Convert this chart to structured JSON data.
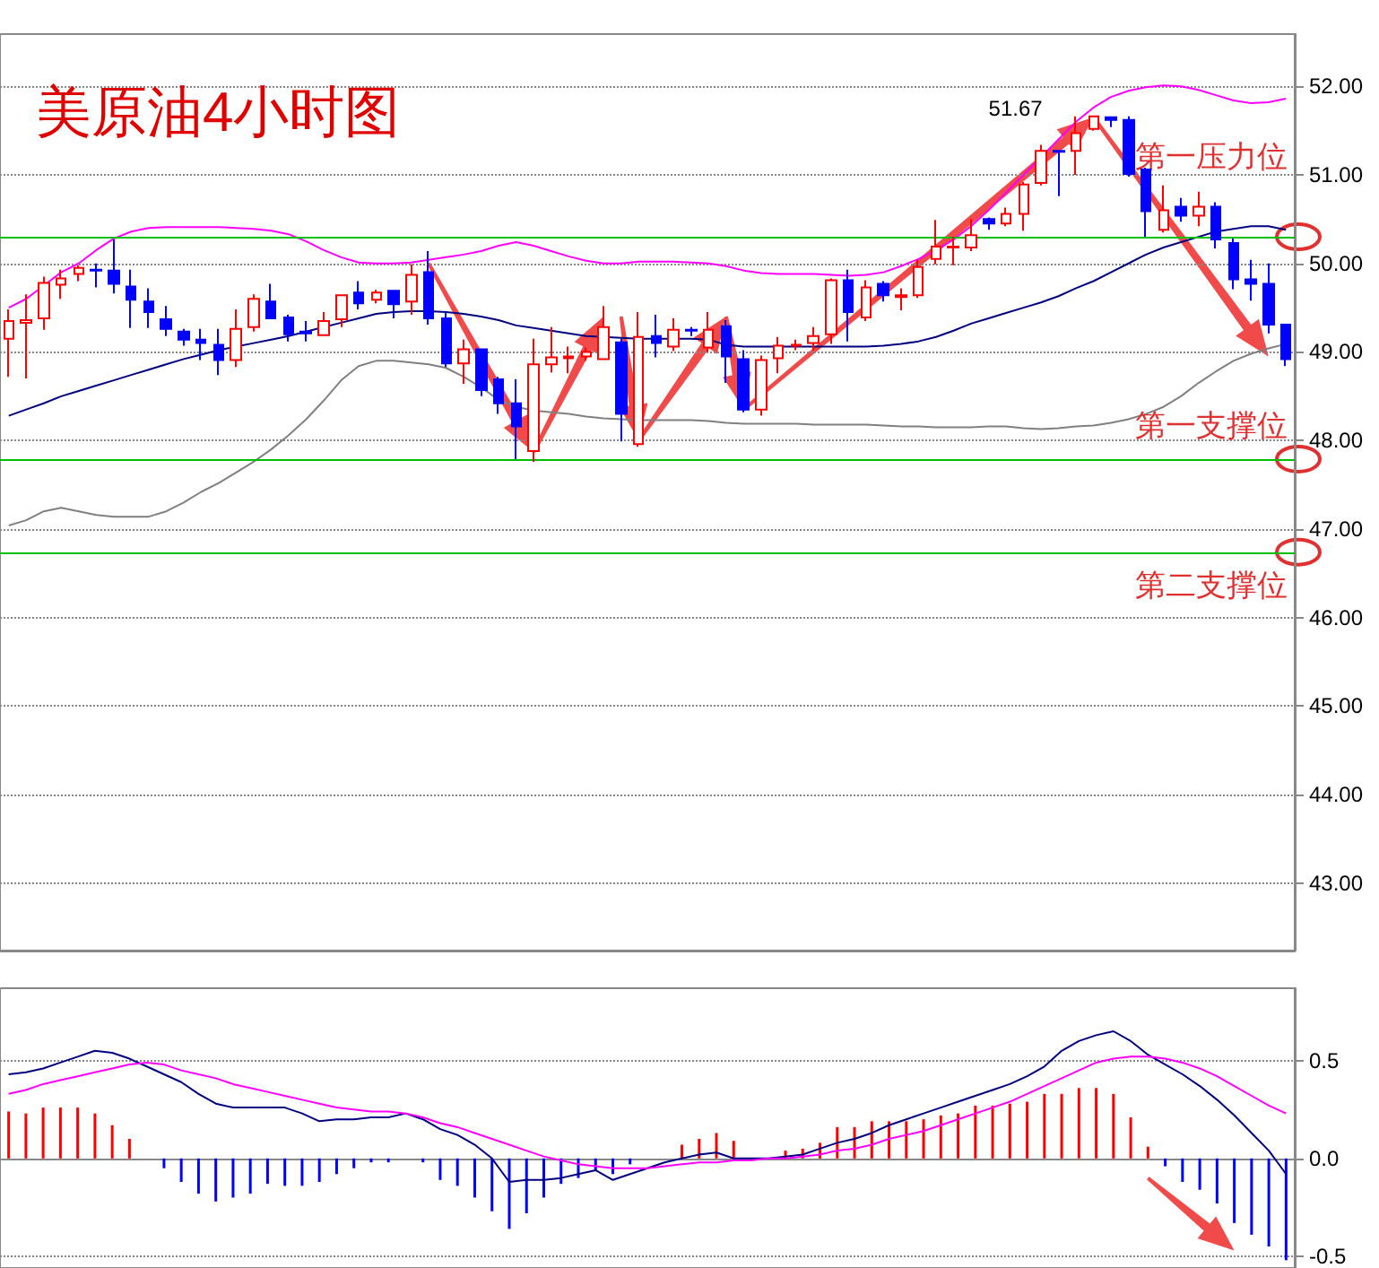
{
  "chart_data": [
    {
      "type": "candlestick",
      "title": "美原油4小时图",
      "categories": [
        null,
        null,
        null,
        null,
        null,
        null,
        null,
        null,
        null,
        null,
        null,
        null,
        null,
        null,
        null,
        null,
        null,
        null,
        null,
        null,
        null,
        null,
        null,
        null,
        null,
        null,
        null,
        null,
        null,
        null,
        null,
        null,
        null,
        null,
        null,
        null,
        null,
        null,
        null,
        null,
        null,
        null,
        null,
        null,
        null,
        null,
        null,
        null,
        null,
        null,
        null,
        null,
        null,
        null,
        null,
        null,
        null,
        null,
        null,
        null,
        null,
        null,
        null,
        null,
        null,
        null,
        null,
        null,
        null,
        null,
        null,
        null,
        null,
        null
      ],
      "ohlc": [
        [
          49.15,
          49.48,
          48.72,
          49.35
        ],
        [
          49.33,
          49.65,
          48.7,
          49.36
        ],
        [
          49.38,
          49.85,
          49.25,
          49.78
        ],
        [
          49.76,
          49.93,
          49.6,
          49.83
        ],
        [
          49.88,
          49.98,
          49.8,
          49.95
        ],
        [
          49.93,
          50.0,
          49.73,
          49.92
        ],
        [
          49.92,
          50.27,
          49.66,
          49.77
        ],
        [
          49.74,
          49.93,
          49.27,
          49.59
        ],
        [
          49.57,
          49.72,
          49.27,
          49.45
        ],
        [
          49.37,
          49.52,
          49.18,
          49.26
        ],
        [
          49.23,
          49.26,
          49.07,
          49.14
        ],
        [
          49.14,
          49.26,
          48.91,
          49.1
        ],
        [
          49.08,
          49.26,
          48.74,
          48.91
        ],
        [
          48.91,
          49.48,
          48.83,
          49.26
        ],
        [
          49.28,
          49.65,
          49.23,
          49.6
        ],
        [
          49.57,
          49.77,
          49.37,
          49.38
        ],
        [
          49.39,
          49.42,
          49.12,
          49.2
        ],
        [
          49.23,
          49.35,
          49.12,
          49.21
        ],
        [
          49.19,
          49.45,
          49.18,
          49.35
        ],
        [
          49.37,
          49.65,
          49.28,
          49.64
        ],
        [
          49.67,
          49.8,
          49.48,
          49.55
        ],
        [
          49.59,
          49.7,
          49.55,
          49.67
        ],
        [
          49.69,
          49.7,
          49.38,
          49.54
        ],
        [
          49.57,
          49.99,
          49.42,
          49.87
        ],
        [
          49.9,
          50.14,
          49.31,
          49.38
        ],
        [
          49.38,
          49.45,
          48.83,
          48.87
        ],
        [
          48.87,
          49.14,
          48.64,
          49.03
        ],
        [
          49.03,
          49.04,
          48.5,
          48.57
        ],
        [
          48.69,
          48.72,
          48.3,
          48.42
        ],
        [
          48.42,
          48.69,
          47.79,
          48.16
        ],
        [
          47.88,
          49.15,
          47.76,
          48.86
        ],
        [
          48.86,
          49.28,
          48.77,
          48.94
        ],
        [
          48.93,
          49.06,
          48.76,
          48.95
        ],
        [
          48.95,
          49.05,
          48.9,
          49.0
        ],
        [
          48.92,
          49.52,
          48.91,
          49.28
        ],
        [
          49.11,
          49.15,
          47.99,
          48.3
        ],
        [
          47.96,
          49.45,
          47.93,
          49.17
        ],
        [
          49.18,
          49.42,
          48.94,
          49.1
        ],
        [
          49.06,
          49.38,
          49.01,
          49.25
        ],
        [
          49.25,
          49.28,
          49.18,
          49.24
        ],
        [
          49.05,
          49.45,
          49.0,
          49.25
        ],
        [
          49.29,
          49.36,
          48.65,
          48.95
        ],
        [
          48.92,
          49.02,
          48.32,
          48.35
        ],
        [
          48.35,
          48.96,
          48.28,
          48.91
        ],
        [
          48.93,
          49.17,
          48.76,
          49.07
        ],
        [
          49.07,
          49.14,
          49.02,
          49.08
        ],
        [
          49.1,
          49.28,
          49.02,
          49.18
        ],
        [
          49.2,
          49.83,
          49.09,
          49.81
        ],
        [
          49.81,
          49.93,
          49.12,
          49.45
        ],
        [
          49.39,
          49.81,
          49.35,
          49.73
        ],
        [
          49.77,
          49.8,
          49.57,
          49.64
        ],
        [
          49.62,
          49.72,
          49.47,
          49.64
        ],
        [
          49.64,
          50.04,
          49.61,
          49.96
        ],
        [
          50.05,
          50.49,
          49.99,
          50.19
        ],
        [
          50.18,
          50.3,
          49.98,
          50.19
        ],
        [
          50.18,
          50.5,
          50.14,
          50.32
        ],
        [
          50.5,
          50.52,
          50.38,
          50.45
        ],
        [
          50.45,
          50.63,
          50.42,
          50.56
        ],
        [
          50.56,
          50.92,
          50.37,
          50.89
        ],
        [
          50.91,
          51.34,
          50.88,
          51.27
        ],
        [
          51.27,
          51.28,
          50.76,
          51.26
        ],
        [
          51.27,
          51.66,
          51.0,
          51.47
        ],
        [
          51.52,
          51.67,
          51.5,
          51.66
        ],
        [
          51.65,
          51.66,
          51.54,
          51.62
        ],
        [
          51.62,
          51.66,
          50.98,
          51.01
        ],
        [
          51.06,
          51.08,
          50.3,
          50.59
        ],
        [
          50.38,
          50.88,
          50.35,
          50.6
        ],
        [
          50.64,
          50.74,
          50.47,
          50.54
        ],
        [
          50.54,
          50.81,
          50.42,
          50.64
        ],
        [
          50.64,
          50.69,
          50.17,
          50.27
        ],
        [
          50.23,
          50.28,
          49.71,
          49.82
        ],
        [
          49.82,
          50.04,
          49.58,
          49.77
        ],
        [
          49.77,
          50.0,
          49.21,
          49.31
        ],
        [
          49.31,
          49.31,
          48.84,
          48.92
        ]
      ],
      "series": [
        {
          "type": "line",
          "color": "#ff00ff",
          "values": [
            49.5,
            49.6,
            49.75,
            49.9,
            50.0,
            50.15,
            50.28,
            50.36,
            50.4,
            50.41,
            50.41,
            50.41,
            50.41,
            50.4,
            50.39,
            50.37,
            50.33,
            50.25,
            50.15,
            50.07,
            50.01,
            50.0,
            50.0,
            50.01,
            50.04,
            50.07,
            50.1,
            50.14,
            50.2,
            50.24,
            50.2,
            50.14,
            50.08,
            50.03,
            50.0,
            50.0,
            50.02,
            50.02,
            50.02,
            50.01,
            50.0,
            49.97,
            49.92,
            49.89,
            49.88,
            49.88,
            49.88,
            49.87,
            49.86,
            49.87,
            49.9,
            49.97,
            50.05,
            50.15,
            50.27,
            50.42,
            50.6,
            50.8,
            51.0,
            51.2,
            51.4,
            51.6,
            51.76,
            51.88,
            51.95,
            51.99,
            52.01,
            52.0,
            51.96,
            51.9,
            51.84,
            51.81,
            51.82,
            51.86
          ]
        },
        {
          "type": "line",
          "color": "#000080",
          "values": [
            48.28,
            48.35,
            48.42,
            48.5,
            48.56,
            48.62,
            48.68,
            48.74,
            48.8,
            48.86,
            48.92,
            48.97,
            49.02,
            49.06,
            49.1,
            49.14,
            49.18,
            49.23,
            49.28,
            49.33,
            49.38,
            49.43,
            49.45,
            49.46,
            49.46,
            49.45,
            49.43,
            49.4,
            49.36,
            49.3,
            49.27,
            49.24,
            49.21,
            49.18,
            49.17,
            49.16,
            49.15,
            49.15,
            49.15,
            49.15,
            49.14,
            49.08,
            49.06,
            49.06,
            49.06,
            49.06,
            49.06,
            49.06,
            49.06,
            49.06,
            49.07,
            49.09,
            49.12,
            49.17,
            49.24,
            49.32,
            49.38,
            49.44,
            49.5,
            49.56,
            49.63,
            49.72,
            49.8,
            49.9,
            50.0,
            50.1,
            50.18,
            50.24,
            50.3,
            50.36,
            50.39,
            50.42,
            50.42,
            50.38
          ]
        },
        {
          "type": "line",
          "color": "#808080",
          "values": [
            47.04,
            47.1,
            47.2,
            47.24,
            47.2,
            47.16,
            47.14,
            47.14,
            47.14,
            47.2,
            47.3,
            47.42,
            47.52,
            47.64,
            47.76,
            47.9,
            48.06,
            48.24,
            48.45,
            48.68,
            48.84,
            48.9,
            48.9,
            48.88,
            48.86,
            48.82,
            48.72,
            48.6,
            48.46,
            48.38,
            48.34,
            48.32,
            48.3,
            48.27,
            48.25,
            48.24,
            48.23,
            48.23,
            48.23,
            48.23,
            48.22,
            48.2,
            48.19,
            48.19,
            48.19,
            48.19,
            48.18,
            48.18,
            48.18,
            48.18,
            48.17,
            48.16,
            48.16,
            48.15,
            48.15,
            48.15,
            48.16,
            48.16,
            48.14,
            48.13,
            48.14,
            48.16,
            48.17,
            48.2,
            48.24,
            48.3,
            48.38,
            48.5,
            48.65,
            48.78,
            48.9,
            48.98,
            49.04,
            49.09
          ]
        }
      ],
      "ref_lines": [
        {
          "axis": "y",
          "value": 50.3,
          "label": "第一压力位",
          "color": "#00c000"
        },
        {
          "axis": "y",
          "value": 47.79,
          "label": "第一支撑位",
          "color": "#00c000"
        },
        {
          "axis": "y",
          "value": 46.74,
          "label": "第二支撑位",
          "color": "#00c000"
        }
      ],
      "annotations": [
        "51.67"
      ],
      "ylim": [
        42.24,
        52.59
      ],
      "yticks": [
        {
          "value": 52,
          "label": "52.00"
        },
        {
          "value": 51,
          "label": "51.00"
        },
        {
          "value": 50,
          "label": "50.00"
        },
        {
          "value": 49,
          "label": "49.00"
        },
        {
          "value": 48,
          "label": "48.00"
        },
        {
          "value": 47,
          "label": "47.00"
        },
        {
          "value": 46,
          "label": "46.00"
        },
        {
          "value": 45,
          "label": "45.00"
        },
        {
          "value": 44,
          "label": "44.00"
        },
        {
          "value": 43,
          "label": "43.00"
        }
      ],
      "grid": "y",
      "tick_labels": "y",
      "marker": "none"
    },
    {
      "type": "bar",
      "categories": [
        null,
        null,
        null,
        null,
        null,
        null,
        null,
        null,
        null,
        null,
        null,
        null,
        null,
        null,
        null,
        null,
        null,
        null,
        null,
        null,
        null,
        null,
        null,
        null,
        null,
        null,
        null,
        null,
        null,
        null,
        null,
        null,
        null,
        null,
        null,
        null,
        null,
        null,
        null,
        null,
        null,
        null,
        null,
        null,
        null,
        null,
        null,
        null,
        null,
        null,
        null,
        null,
        null,
        null,
        null,
        null,
        null,
        null,
        null,
        null,
        null,
        null,
        null,
        null,
        null,
        null,
        null,
        null,
        null,
        null,
        null,
        null,
        null,
        null,
        null
      ],
      "series": [
        {
          "type": "bar",
          "values": [
            0.24,
            0.23,
            0.26,
            0.26,
            0.26,
            0.23,
            0.17,
            0.1,
            0,
            -0.05,
            -0.12,
            -0.18,
            -0.22,
            -0.2,
            -0.18,
            -0.13,
            -0.14,
            -0.14,
            -0.12,
            -0.08,
            -0.05,
            -0.02,
            -0.02,
            0,
            -0.02,
            -0.11,
            -0.14,
            -0.2,
            -0.27,
            -0.36,
            -0.28,
            -0.2,
            -0.13,
            -0.1,
            -0.06,
            -0.08,
            -0.03,
            0,
            0,
            0.07,
            0.1,
            0.13,
            0.09,
            0,
            0,
            0.04,
            0.05,
            0.08,
            0.16,
            0.16,
            0.19,
            0.19,
            0.19,
            0.2,
            0.22,
            0.23,
            0.27,
            0.27,
            0.28,
            0.29,
            0.33,
            0.33,
            0.36,
            0.36,
            0.33,
            0.21,
            0.06,
            -0.04,
            -0.12,
            -0.16,
            -0.23,
            -0.33,
            -0.39,
            -0.45,
            -0.52
          ],
          "colors": [
            "#ff0000",
            "#ff0000",
            "#ff0000",
            "#ff0000",
            "#ff0000",
            "#ff0000",
            "#ff0000",
            "#ff0000",
            "#ff0000",
            "#0000ff",
            "#0000ff",
            "#0000ff",
            "#0000ff",
            "#0000ff",
            "#0000ff",
            "#0000ff",
            "#0000ff",
            "#0000ff",
            "#0000ff",
            "#0000ff",
            "#0000ff",
            "#0000ff",
            "#0000ff",
            "#0000ff",
            "#0000ff",
            "#0000ff",
            "#0000ff",
            "#0000ff",
            "#0000ff",
            "#0000ff",
            "#0000ff",
            "#0000ff",
            "#0000ff",
            "#0000ff",
            "#0000ff",
            "#0000ff",
            "#0000ff",
            "#0000ff",
            "#ff0000",
            "#ff0000",
            "#ff0000",
            "#ff0000",
            "#ff0000",
            "#ff0000",
            "#ff0000",
            "#ff0000",
            "#ff0000",
            "#ff0000",
            "#ff0000",
            "#ff0000",
            "#ff0000",
            "#ff0000",
            "#ff0000",
            "#ff0000",
            "#ff0000",
            "#ff0000",
            "#ff0000",
            "#ff0000",
            "#ff0000",
            "#ff0000",
            "#ff0000",
            "#ff0000",
            "#ff0000",
            "#ff0000",
            "#ff0000",
            "#ff0000",
            "#ff0000",
            "#0000ff",
            "#0000ff",
            "#0000ff",
            "#0000ff",
            "#0000ff",
            "#0000ff",
            "#0000ff",
            "#0000ff"
          ]
        },
        {
          "type": "line",
          "color": "#000080",
          "values": [
            0.43,
            0.44,
            0.46,
            0.49,
            0.52,
            0.55,
            0.54,
            0.51,
            0.47,
            0.43,
            0.39,
            0.33,
            0.28,
            0.26,
            0.26,
            0.26,
            0.26,
            0.23,
            0.19,
            0.2,
            0.2,
            0.21,
            0.21,
            0.23,
            0.2,
            0.15,
            0.12,
            0.07,
            0.0,
            -0.12,
            -0.11,
            -0.11,
            -0.1,
            -0.08,
            -0.06,
            -0.11,
            -0.08,
            -0.05,
            -0.02,
            0.0,
            0.02,
            0.03,
            0.0,
            0.0,
            0.0,
            0.01,
            0.02,
            0.05,
            0.08,
            0.1,
            0.13,
            0.17,
            0.2,
            0.23,
            0.26,
            0.29,
            0.32,
            0.35,
            0.38,
            0.42,
            0.47,
            0.55,
            0.6,
            0.63,
            0.65,
            0.6,
            0.53,
            0.48,
            0.43,
            0.37,
            0.3,
            0.22,
            0.13,
            0.04,
            -0.08
          ]
        },
        {
          "type": "line",
          "color": "#ff00ff",
          "values": [
            0.33,
            0.35,
            0.38,
            0.4,
            0.42,
            0.44,
            0.46,
            0.48,
            0.49,
            0.48,
            0.45,
            0.43,
            0.41,
            0.38,
            0.36,
            0.34,
            0.32,
            0.3,
            0.28,
            0.26,
            0.25,
            0.24,
            0.24,
            0.23,
            0.21,
            0.18,
            0.16,
            0.13,
            0.1,
            0.07,
            0.04,
            0.01,
            -0.01,
            -0.03,
            -0.04,
            -0.05,
            -0.05,
            -0.05,
            -0.04,
            -0.03,
            -0.02,
            -0.02,
            -0.01,
            -0.01,
            0.0,
            0.0,
            0.01,
            0.02,
            0.04,
            0.05,
            0.07,
            0.1,
            0.12,
            0.14,
            0.17,
            0.2,
            0.23,
            0.26,
            0.29,
            0.33,
            0.37,
            0.41,
            0.45,
            0.49,
            0.51,
            0.52,
            0.52,
            0.51,
            0.49,
            0.46,
            0.42,
            0.37,
            0.32,
            0.27,
            0.23
          ]
        }
      ],
      "ylim": [
        -0.56,
        0.87
      ],
      "yticks": [
        0.5,
        {
          "value": 0,
          "label": "0.0"
        },
        -0.5
      ],
      "grid": "y",
      "tick_labels": "y",
      "marker": "none"
    }
  ]
}
